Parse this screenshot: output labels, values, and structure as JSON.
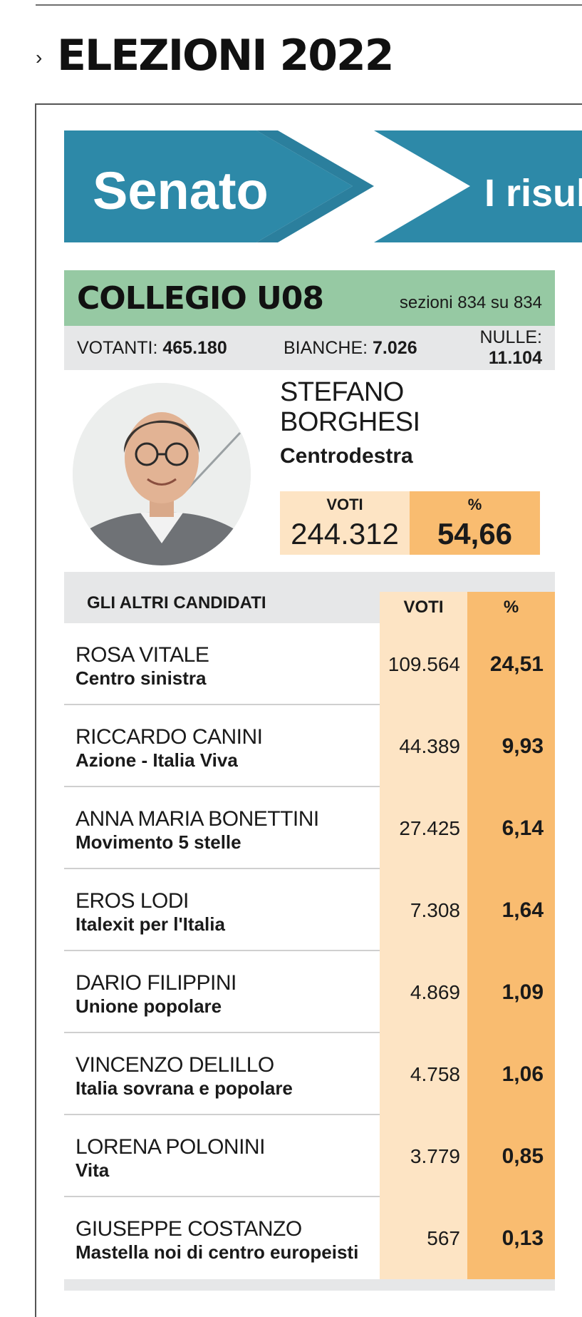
{
  "header": {
    "chevron": "›",
    "title": "ELEZIONI 2022"
  },
  "banner": {
    "left_text": "Senato",
    "right_text": "I risult",
    "colors": {
      "blue": "#2d89a8",
      "blue_dark": "#2b7f9d"
    }
  },
  "collegio": {
    "name": "COLLEGIO U08",
    "sezioni": "sezioni 834 su 834"
  },
  "counts": {
    "votanti_label": "VOTANTI: ",
    "votanti_value": "465.180",
    "bianche_label": "BIANCHE: ",
    "bianche_value": "7.026",
    "nulle_label": "NULLE: ",
    "nulle_value": "11.104"
  },
  "winner": {
    "first_name": "STEFANO",
    "last_name": "BORGHESI",
    "party": "Centrodestra",
    "voti_label": "VOTI",
    "voti": "244.312",
    "pct_label": "%",
    "pct": "54,66",
    "photo_icon": "candidate-portrait"
  },
  "others": {
    "title": "GLI ALTRI CANDIDATI",
    "voti_label": "VOTI",
    "pct_label": "%",
    "rows": [
      {
        "name": "ROSA VITALE",
        "party": "Centro sinistra",
        "voti": "109.564",
        "pct": "24,51"
      },
      {
        "name": "RICCARDO CANINI",
        "party": "Azione - Italia Viva",
        "voti": "44.389",
        "pct": "9,93"
      },
      {
        "name": "ANNA MARIA BONETTINI",
        "party": "Movimento 5 stelle",
        "voti": "27.425",
        "pct": "6,14"
      },
      {
        "name": "EROS LODI",
        "party": "Italexit per l'Italia",
        "voti": "7.308",
        "pct": "1,64"
      },
      {
        "name": "DARIO FILIPPINI",
        "party": "Unione popolare",
        "voti": "4.869",
        "pct": "1,09"
      },
      {
        "name": "VINCENZO DELILLO",
        "party": "Italia sovrana e popolare",
        "voti": "4.758",
        "pct": "1,06"
      },
      {
        "name": "LORENA POLONINI",
        "party": "Vita",
        "voti": "3.779",
        "pct": "0,85"
      },
      {
        "name": "GIUSEPPE COSTANZO",
        "party": "Mastella noi di centro europeisti",
        "voti": "567",
        "pct": "0,13"
      }
    ]
  },
  "colors": {
    "collegio_green": "#96c9a3",
    "grey_band": "#e6e7e8",
    "voti_column": "#fde4c4",
    "pct_column": "#f9bc70"
  }
}
